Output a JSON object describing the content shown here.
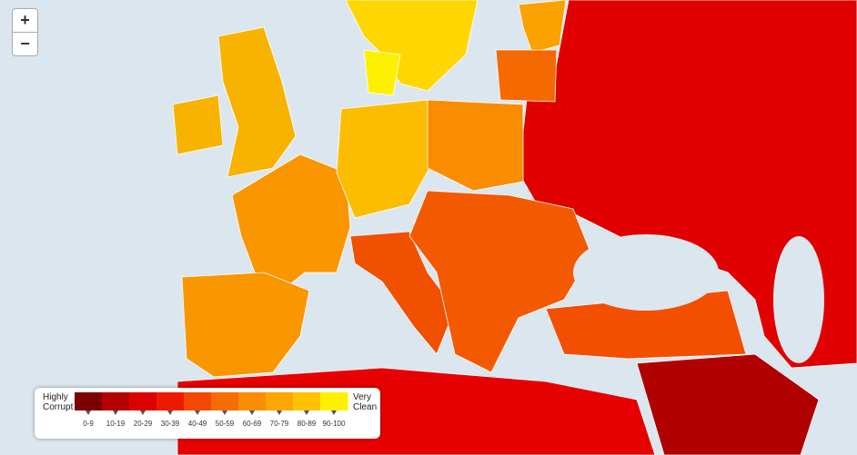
{
  "controls": {
    "zoom_in": "+",
    "zoom_out": "−"
  },
  "legend": {
    "low_label": "Highly Corrupt",
    "high_label": "Very Clean",
    "bins": [
      {
        "label": "0-9",
        "color": "#7c0000"
      },
      {
        "label": "10-19",
        "color": "#b40000"
      },
      {
        "label": "20-29",
        "color": "#dc0000"
      },
      {
        "label": "30-39",
        "color": "#ee1a00"
      },
      {
        "label": "40-49",
        "color": "#f44800"
      },
      {
        "label": "50-59",
        "color": "#f76c00"
      },
      {
        "label": "60-69",
        "color": "#fa8c00"
      },
      {
        "label": "70-79",
        "color": "#fca600"
      },
      {
        "label": "80-89",
        "color": "#fdc300"
      },
      {
        "label": "90-100",
        "color": "#fff000"
      }
    ]
  }
}
